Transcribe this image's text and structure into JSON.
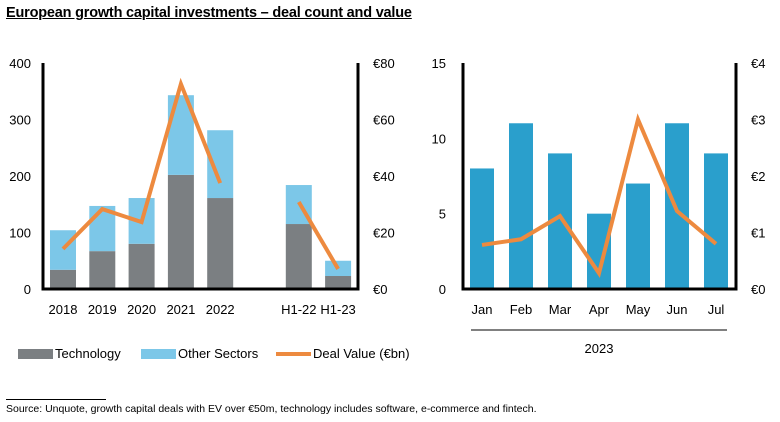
{
  "title": "European growth capital investments – deal count and value",
  "colors": {
    "technology": "#7b7f82",
    "other_sectors": "#7cc7e8",
    "deal_value": "#ed8a3f",
    "monthly_bars": "#2a9fcc"
  },
  "legend": {
    "technology": "Technology",
    "other_sectors": "Other Sectors",
    "deal_value": "Deal Value (€bn)"
  },
  "footnote": "Source:  Unquote, growth capital deals with EV over €50m, technology includes software, e-commerce and fintech.",
  "chart_data": [
    {
      "type": "bar",
      "subtype": "stacked-bar-with-line",
      "categories": [
        "2018",
        "2019",
        "2020",
        "2021",
        "2022",
        "",
        "H1-22",
        "H1-23"
      ],
      "series": [
        {
          "name": "Technology",
          "axis": "left",
          "values": [
            34,
            67,
            80,
            202,
            161,
            null,
            115,
            23
          ]
        },
        {
          "name": "Other Sectors",
          "axis": "left",
          "values": [
            70,
            80,
            81,
            141,
            120,
            null,
            69,
            27
          ]
        },
        {
          "name": "Deal Value (€bn)",
          "type": "line",
          "axis": "right",
          "values": [
            14.2,
            28.3,
            23.7,
            72.6,
            37.5,
            null,
            30.8,
            7.1
          ]
        }
      ],
      "ylim_left": [
        0,
        400
      ],
      "yticks_left": [
        "0",
        "100",
        "200",
        "300",
        "400"
      ],
      "ylim_right": [
        0,
        80
      ],
      "yticks_right": [
        "€0",
        "€20",
        "€40",
        "€60",
        "€80"
      ],
      "grid": false,
      "legend_position": "bottom"
    },
    {
      "type": "bar",
      "subtype": "bar-with-line",
      "categories": [
        "Jan",
        "Feb",
        "Mar",
        "Apr",
        "May",
        "Jun",
        "Jul"
      ],
      "xgroup_label": "2023",
      "series": [
        {
          "name": "Deal count",
          "axis": "left",
          "values": [
            8,
            11,
            9,
            5,
            7,
            11,
            9
          ]
        },
        {
          "name": "Deal Value (€bn)",
          "type": "line",
          "axis": "right",
          "values": [
            0.78,
            0.88,
            1.29,
            0.28,
            3.0,
            1.38,
            0.8
          ]
        }
      ],
      "ylim_left": [
        0,
        15
      ],
      "yticks_left": [
        "0",
        "5",
        "10",
        "15"
      ],
      "ylim_right": [
        0,
        4
      ],
      "yticks_right": [
        "€0",
        "€1",
        "€2",
        "€3",
        "€4"
      ],
      "grid": false
    }
  ]
}
